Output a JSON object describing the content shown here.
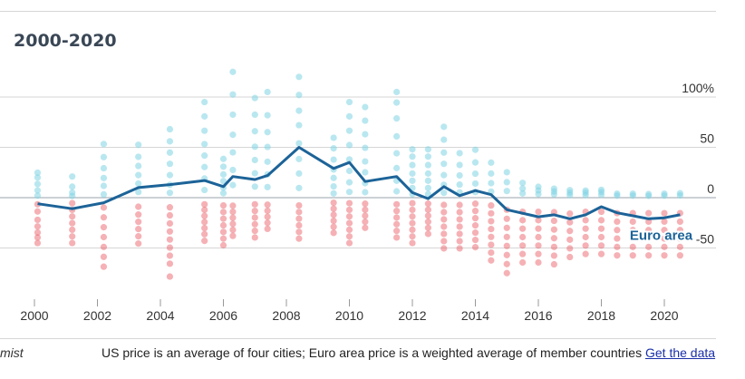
{
  "header": {
    "title": "2000-2020"
  },
  "footer": {
    "source": "mist",
    "note": "US price is an average of four cities; Euro area price is a weighted average of member countries",
    "link": "Get the data"
  },
  "colors": {
    "blue_dots": "#7fd3e3",
    "red_dots": "#e8535c",
    "line": "#1c6398",
    "zero_line": "#9aa3ab",
    "grid": "#d6d6d6"
  },
  "chart_data": {
    "type": "scatter",
    "title": "2000-2020",
    "xlabel": "",
    "ylabel": "",
    "xlim": [
      1999.6,
      2021.3
    ],
    "ylim": [
      -95,
      128
    ],
    "x_ticks": [
      2000,
      2002,
      2004,
      2006,
      2008,
      2010,
      2012,
      2014,
      2016,
      2018,
      2020
    ],
    "y_ticks": [
      100,
      50,
      0,
      -50
    ],
    "y_tick_labels": [
      "100%",
      "50",
      "0",
      "-50"
    ],
    "grid": true,
    "annotations": [
      {
        "text": "Euro area",
        "x": 2019.9,
        "y": -42
      }
    ],
    "series": [
      {
        "name": "Euro area",
        "type": "line",
        "x": [
          2000.1,
          2001.2,
          2002.2,
          2003.3,
          2004.3,
          2005.4,
          2006.0,
          2006.3,
          2007.0,
          2007.4,
          2008.4,
          2009.5,
          2010.0,
          2010.5,
          2011.5,
          2012.0,
          2012.5,
          2013.0,
          2013.5,
          2014.0,
          2014.5,
          2015.0,
          2016.0,
          2016.5,
          2017.0,
          2017.5,
          2018.0,
          2018.5,
          2019.0,
          2019.5,
          2020.0,
          2020.5
        ],
        "y": [
          -6,
          -11,
          -5,
          10,
          13,
          17,
          11,
          21,
          18,
          22,
          50,
          29,
          35,
          16,
          21,
          5,
          -1,
          11,
          2,
          7,
          3,
          -12,
          -19,
          -17,
          -21,
          -17,
          -9,
          -15,
          -18,
          -21,
          -20,
          -17
        ]
      }
    ],
    "dot_columns": [
      {
        "x": 2000.1,
        "pos": [
          0.05,
          0.18,
          0.34,
          0.5,
          0.62
        ],
        "neg": [
          0.12,
          0.25,
          0.4,
          0.52,
          0.63,
          0.72,
          0.82
        ]
      },
      {
        "x": 2001.2,
        "pos": [
          0.04,
          0.12,
          0.26,
          0.5
        ],
        "neg": [
          0.1,
          0.22,
          0.34,
          0.46,
          0.58,
          0.7,
          0.82
        ]
      },
      {
        "x": 2002.2,
        "pos": [
          0.05,
          0.18,
          0.3,
          0.45,
          0.62,
          0.82
        ],
        "neg": [
          0.14,
          0.28,
          0.42,
          0.56,
          0.7,
          0.84,
          0.98
        ]
      },
      {
        "x": 2003.3,
        "pos": [
          0.08,
          0.2,
          0.32,
          0.45,
          0.58,
          0.75
        ],
        "neg": [
          0.15,
          0.28,
          0.4,
          0.52,
          0.64,
          0.76
        ]
      },
      {
        "x": 2004.3,
        "pos": [
          0.06,
          0.16,
          0.28,
          0.42,
          0.56,
          0.7,
          0.85
        ],
        "neg": [
          0.12,
          0.22,
          0.32,
          0.42,
          0.52,
          0.62,
          0.72,
          0.82,
          0.98
        ]
      },
      {
        "x": 2005.4,
        "pos": [
          0.08,
          0.2,
          0.32,
          0.44,
          0.56,
          0.7,
          0.85,
          1.0
        ],
        "neg": [
          0.12,
          0.22,
          0.33,
          0.44,
          0.55,
          0.66,
          0.78
        ]
      },
      {
        "x": 2006.0,
        "pos": [
          0.08,
          0.18,
          0.3,
          0.42,
          0.56,
          0.7
        ],
        "neg": [
          0.14,
          0.26,
          0.38,
          0.5,
          0.62,
          0.74,
          0.86
        ]
      },
      {
        "x": 2006.3,
        "pos": [
          0.1,
          0.22,
          0.36,
          0.5,
          0.66,
          0.82,
          1.0
        ],
        "neg": [
          0.16,
          0.28,
          0.4,
          0.52,
          0.64,
          0.76
        ]
      },
      {
        "x": 2007.0,
        "pos": [
          0.1,
          0.22,
          0.34,
          0.46,
          0.6,
          0.75,
          0.9
        ],
        "neg": [
          0.12,
          0.24,
          0.36,
          0.48,
          0.6,
          0.72
        ]
      },
      {
        "x": 2007.4,
        "pos": [
          0.1,
          0.22,
          0.34,
          0.48,
          0.62,
          0.78,
          1.0
        ],
        "neg": [
          0.14,
          0.26,
          0.38,
          0.5,
          0.62
        ]
      },
      {
        "x": 2008.4,
        "pos": [
          0.08,
          0.2,
          0.32,
          0.45,
          0.6,
          0.72,
          0.85,
          1.0
        ],
        "neg": [
          0.14,
          0.26,
          0.38,
          0.5,
          0.62,
          0.74
        ]
      },
      {
        "x": 2009.5,
        "pos": [
          0.06,
          0.16,
          0.28,
          0.4,
          0.54,
          0.7,
          0.85
        ],
        "neg": [
          0.1,
          0.22,
          0.34,
          0.46,
          0.58,
          0.7
        ]
      },
      {
        "x": 2010.0,
        "pos": [
          0.06,
          0.16,
          0.28,
          0.4,
          0.55,
          0.7,
          0.85,
          1.0
        ],
        "neg": [
          0.1,
          0.22,
          0.34,
          0.46,
          0.58,
          0.7,
          0.82
        ]
      },
      {
        "x": 2010.5,
        "pos": [
          0.06,
          0.16,
          0.28,
          0.4,
          0.55,
          0.7,
          0.85,
          1.0
        ],
        "neg": [
          0.12,
          0.24,
          0.36,
          0.48,
          0.6
        ]
      },
      {
        "x": 2011.5,
        "pos": [
          0.06,
          0.16,
          0.28,
          0.42,
          0.58,
          0.75,
          0.9,
          1.0
        ],
        "neg": [
          0.12,
          0.24,
          0.36,
          0.48,
          0.6,
          0.72
        ]
      },
      {
        "x": 2012.0,
        "pos": [
          0.06,
          0.16,
          0.28,
          0.4,
          0.54,
          0.68,
          0.8
        ],
        "neg": [
          0.1,
          0.22,
          0.34,
          0.46,
          0.58,
          0.7,
          0.82
        ]
      },
      {
        "x": 2012.5,
        "pos": [
          0.06,
          0.16,
          0.28,
          0.4,
          0.54,
          0.68,
          0.8
        ],
        "neg": [
          0.12,
          0.24,
          0.36,
          0.48,
          0.6,
          0.72
        ]
      },
      {
        "x": 2013.0,
        "pos": [
          0.06,
          0.16,
          0.28,
          0.42,
          0.56,
          0.72,
          0.88
        ],
        "neg": [
          0.12,
          0.24,
          0.36,
          0.48,
          0.6,
          0.72,
          0.84
        ]
      },
      {
        "x": 2013.5,
        "pos": [
          0.08,
          0.2,
          0.34,
          0.5,
          0.68
        ],
        "neg": [
          0.12,
          0.24,
          0.36,
          0.48,
          0.6,
          0.72,
          0.84
        ]
      },
      {
        "x": 2014.0,
        "pos": [
          0.08,
          0.2,
          0.34,
          0.5,
          0.68
        ],
        "neg": [
          0.1,
          0.22,
          0.34,
          0.46,
          0.58,
          0.7,
          0.82
        ]
      },
      {
        "x": 2014.5,
        "pos": [
          0.1,
          0.24,
          0.4,
          0.58
        ],
        "neg": [
          0.12,
          0.24,
          0.36,
          0.48,
          0.6,
          0.72,
          0.84,
          0.96
        ]
      },
      {
        "x": 2015.0,
        "pos": [
          0.12,
          0.28,
          0.46
        ],
        "neg": [
          0.16,
          0.28,
          0.4,
          0.52,
          0.64,
          0.76,
          0.88,
          1.0
        ]
      },
      {
        "x": 2015.5,
        "pos": [
          0.12,
          0.26,
          0.42
        ],
        "neg": [
          0.2,
          0.32,
          0.44,
          0.56,
          0.68,
          0.8,
          0.92
        ]
      },
      {
        "x": 2016.0,
        "pos": [
          0.12,
          0.24,
          0.36
        ],
        "neg": [
          0.2,
          0.32,
          0.44,
          0.56,
          0.68,
          0.8,
          0.92
        ]
      },
      {
        "x": 2016.5,
        "pos": [
          0.12,
          0.22,
          0.32
        ],
        "neg": [
          0.2,
          0.32,
          0.44,
          0.56,
          0.68,
          0.8,
          0.92
        ]
      },
      {
        "x": 2017.0,
        "pos": [
          0.1,
          0.2,
          0.3
        ],
        "neg": [
          0.22,
          0.34,
          0.46,
          0.58,
          0.7,
          0.82
        ]
      },
      {
        "x": 2017.5,
        "pos": [
          0.1,
          0.2,
          0.28
        ],
        "neg": [
          0.2,
          0.32,
          0.44,
          0.56,
          0.68,
          0.8
        ]
      },
      {
        "x": 2018.0,
        "pos": [
          0.1,
          0.2,
          0.28
        ],
        "neg": [
          0.2,
          0.32,
          0.44,
          0.56,
          0.68,
          0.8
        ]
      },
      {
        "x": 2018.5,
        "pos": [
          0.1,
          0.2
        ],
        "neg": [
          0.22,
          0.34,
          0.46,
          0.58,
          0.7,
          0.82
        ]
      },
      {
        "x": 2019.0,
        "pos": [
          0.1,
          0.2
        ],
        "neg": [
          0.22,
          0.34,
          0.46,
          0.58,
          0.7,
          0.82
        ]
      },
      {
        "x": 2019.5,
        "pos": [
          0.1,
          0.2
        ],
        "neg": [
          0.22,
          0.34,
          0.46,
          0.58,
          0.7,
          0.82
        ]
      },
      {
        "x": 2020.0,
        "pos": [
          0.1,
          0.2
        ],
        "neg": [
          0.22,
          0.34,
          0.46,
          0.58,
          0.7,
          0.82
        ]
      },
      {
        "x": 2020.5,
        "pos": [
          0.1,
          0.2
        ],
        "neg": [
          0.22,
          0.34,
          0.46,
          0.58,
          0.7,
          0.82
        ]
      }
    ],
    "dot_ranges": {
      "2000.1": [
        40,
        -55
      ],
      "2001.2": [
        42,
        -55
      ],
      "2002.2": [
        65,
        -70
      ],
      "2003.3": [
        70,
        -60
      ],
      "2004.3": [
        80,
        -80
      ],
      "2005.4": [
        95,
        -55
      ],
      "2006.0": [
        55,
        -55
      ],
      "2006.3": [
        125,
        -50
      ],
      "2007.0": [
        110,
        -55
      ],
      "2007.4": [
        105,
        -50
      ],
      "2008.4": [
        120,
        -55
      ],
      "2009.5": [
        70,
        -50
      ],
      "2010.0": [
        95,
        -55
      ],
      "2010.5": [
        90,
        -50
      ],
      "2011.5": [
        105,
        -55
      ],
      "2012.0": [
        60,
        -55
      ],
      "2012.5": [
        60,
        -50
      ],
      "2013.0": [
        80,
        -60
      ],
      "2013.5": [
        65,
        -60
      ],
      "2014.0": [
        70,
        -60
      ],
      "2014.5": [
        60,
        -65
      ],
      "2015.0": [
        55,
        -75
      ],
      "2015.5": [
        35,
        -70
      ],
      "2016.0": [
        30,
        -70
      ],
      "2016.5": [
        28,
        -72
      ],
      "2017.0": [
        25,
        -72
      ],
      "2017.5": [
        25,
        -70
      ],
      "2018.0": [
        28,
        -70
      ],
      "2018.5": [
        20,
        -70
      ],
      "2019.0": [
        20,
        -70
      ],
      "2019.5": [
        18,
        -70
      ],
      "2020.0": [
        20,
        -70
      ],
      "2020.5": [
        22,
        -70
      ]
    }
  }
}
